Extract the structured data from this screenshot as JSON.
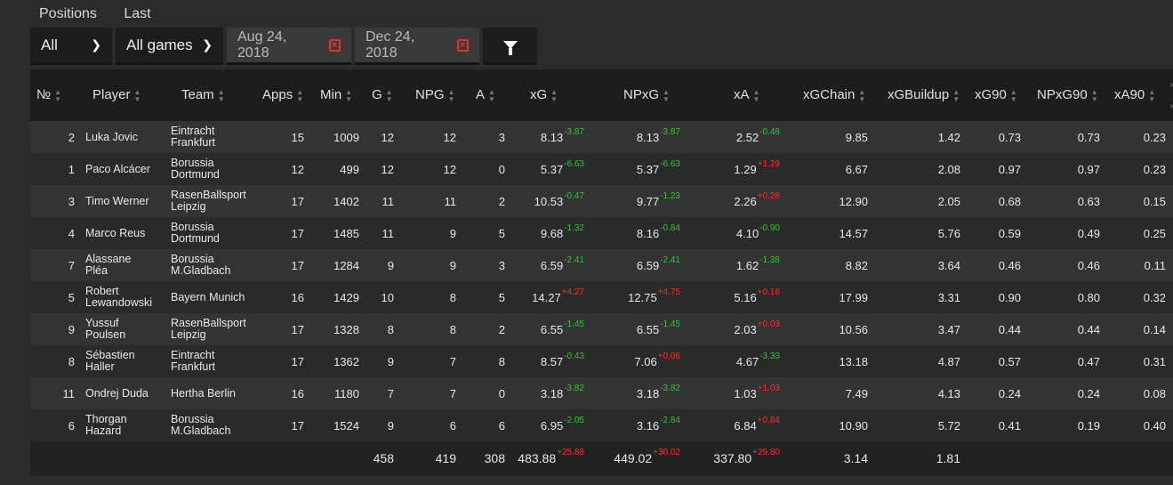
{
  "tabs": [
    "Positions",
    "Last"
  ],
  "filters": {
    "position": "All",
    "games": "All games",
    "date_from": "Aug 24, 2018",
    "date_to": "Dec 24, 2018"
  },
  "columns": [
    "№",
    "Player",
    "Team",
    "Apps",
    "Min",
    "G",
    "NPG",
    "A",
    "xG",
    "NPxG",
    "xA",
    "xGChain",
    "xGBuildup",
    "xG90",
    "NPxG90",
    "xA90"
  ],
  "rows": [
    {
      "no": "2",
      "player": [
        "Luka Jovic"
      ],
      "team": [
        "Eintracht",
        "Frankfurt"
      ],
      "apps": "15",
      "min": "1009",
      "g": "12",
      "npg": "12",
      "a": "3",
      "xg": "8.13",
      "xg_d": "-3.87",
      "npxg": "8.13",
      "npxg_d": "-3.87",
      "xa": "2.52",
      "xa_d": "-0.48",
      "xgchain": "9.85",
      "xgbuildup": "1.42",
      "xg90": "0.73",
      "npxg90": "0.73",
      "xa90": "0.23"
    },
    {
      "no": "1",
      "player": [
        "Paco Alcácer"
      ],
      "team": [
        "Borussia",
        "Dortmund"
      ],
      "apps": "12",
      "min": "499",
      "g": "12",
      "npg": "12",
      "a": "0",
      "xg": "5.37",
      "xg_d": "-6.63",
      "npxg": "5.37",
      "npxg_d": "-6.63",
      "xa": "1.29",
      "xa_d": "+1.29",
      "xgchain": "6.67",
      "xgbuildup": "2.08",
      "xg90": "0.97",
      "npxg90": "0.97",
      "xa90": "0.23"
    },
    {
      "no": "3",
      "player": [
        "Timo Werner"
      ],
      "team": [
        "RasenBallsport",
        "Leipzig"
      ],
      "apps": "17",
      "min": "1402",
      "g": "11",
      "npg": "11",
      "a": "2",
      "xg": "10.53",
      "xg_d": "-0.47",
      "npxg": "9.77",
      "npxg_d": "-1.23",
      "xa": "2.26",
      "xa_d": "+0.26",
      "xgchain": "12.90",
      "xgbuildup": "2.05",
      "xg90": "0.68",
      "npxg90": "0.63",
      "xa90": "0.15"
    },
    {
      "no": "4",
      "player": [
        "Marco Reus"
      ],
      "team": [
        "Borussia",
        "Dortmund"
      ],
      "apps": "17",
      "min": "1485",
      "g": "11",
      "npg": "9",
      "a": "5",
      "xg": "9.68",
      "xg_d": "-1.32",
      "npxg": "8.16",
      "npxg_d": "-0.84",
      "xa": "4.10",
      "xa_d": "-0.90",
      "xgchain": "14.57",
      "xgbuildup": "5.76",
      "xg90": "0.59",
      "npxg90": "0.49",
      "xa90": "0.25"
    },
    {
      "no": "7",
      "player": [
        "Alassane",
        "Pléa"
      ],
      "team": [
        "Borussia",
        "M.Gladbach"
      ],
      "apps": "17",
      "min": "1284",
      "g": "9",
      "npg": "9",
      "a": "3",
      "xg": "6.59",
      "xg_d": "-2.41",
      "npxg": "6.59",
      "npxg_d": "-2.41",
      "xa": "1.62",
      "xa_d": "-1.38",
      "xgchain": "8.82",
      "xgbuildup": "3.64",
      "xg90": "0.46",
      "npxg90": "0.46",
      "xa90": "0.11"
    },
    {
      "no": "5",
      "player": [
        "Robert",
        "Lewandowski"
      ],
      "team": [
        "Bayern Munich"
      ],
      "apps": "16",
      "min": "1429",
      "g": "10",
      "npg": "8",
      "a": "5",
      "xg": "14.27",
      "xg_d": "+4.27",
      "npxg": "12.75",
      "npxg_d": "+4.75",
      "xa": "5.16",
      "xa_d": "+0.16",
      "xgchain": "17.99",
      "xgbuildup": "3.31",
      "xg90": "0.90",
      "npxg90": "0.80",
      "xa90": "0.32"
    },
    {
      "no": "9",
      "player": [
        "Yussuf",
        "Poulsen"
      ],
      "team": [
        "RasenBallsport",
        "Leipzig"
      ],
      "apps": "17",
      "min": "1328",
      "g": "8",
      "npg": "8",
      "a": "2",
      "xg": "6.55",
      "xg_d": "-1.45",
      "npxg": "6.55",
      "npxg_d": "-1.45",
      "xa": "2.03",
      "xa_d": "+0.03",
      "xgchain": "10.56",
      "xgbuildup": "3.47",
      "xg90": "0.44",
      "npxg90": "0.44",
      "xa90": "0.14"
    },
    {
      "no": "8",
      "player": [
        "Sébastien",
        "Haller"
      ],
      "team": [
        "Eintracht",
        "Frankfurt"
      ],
      "apps": "17",
      "min": "1362",
      "g": "9",
      "npg": "7",
      "a": "8",
      "xg": "8.57",
      "xg_d": "-0.43",
      "npxg": "7.06",
      "npxg_d": "+0.06",
      "xa": "4.67",
      "xa_d": "-3.33",
      "xgchain": "13.18",
      "xgbuildup": "4.87",
      "xg90": "0.57",
      "npxg90": "0.47",
      "xa90": "0.31"
    },
    {
      "no": "11",
      "player": [
        "Ondrej Duda"
      ],
      "team": [
        "Hertha Berlin"
      ],
      "apps": "16",
      "min": "1180",
      "g": "7",
      "npg": "7",
      "a": "0",
      "xg": "3.18",
      "xg_d": "-3.82",
      "npxg": "3.18",
      "npxg_d": "-3.82",
      "xa": "1.03",
      "xa_d": "+1.03",
      "xgchain": "7.49",
      "xgbuildup": "4.13",
      "xg90": "0.24",
      "npxg90": "0.24",
      "xa90": "0.08"
    },
    {
      "no": "6",
      "player": [
        "Thorgan",
        "Hazard"
      ],
      "team": [
        "Borussia",
        "M.Gladbach"
      ],
      "apps": "17",
      "min": "1524",
      "g": "9",
      "npg": "6",
      "a": "6",
      "xg": "6.95",
      "xg_d": "-2.05",
      "npxg": "3.16",
      "npxg_d": "-2.84",
      "xa": "6.84",
      "xa_d": "+0.84",
      "xgchain": "10.90",
      "xgbuildup": "5.72",
      "xg90": "0.41",
      "npxg90": "0.19",
      "xa90": "0.40"
    }
  ],
  "totals": {
    "g": "458",
    "npg": "419",
    "a": "308",
    "xg": "483.88",
    "xg_d": "+25.88",
    "npxg": "449.02",
    "npxg_d": "+30.02",
    "xa": "337.80",
    "xa_d": "+29.80",
    "xgchain": "3.14",
    "xgbuildup": "1.81"
  },
  "colors": {
    "negative_delta": "#3fbf3f",
    "positive_delta": "#e33333",
    "calendar_icon": "#dd3333"
  }
}
